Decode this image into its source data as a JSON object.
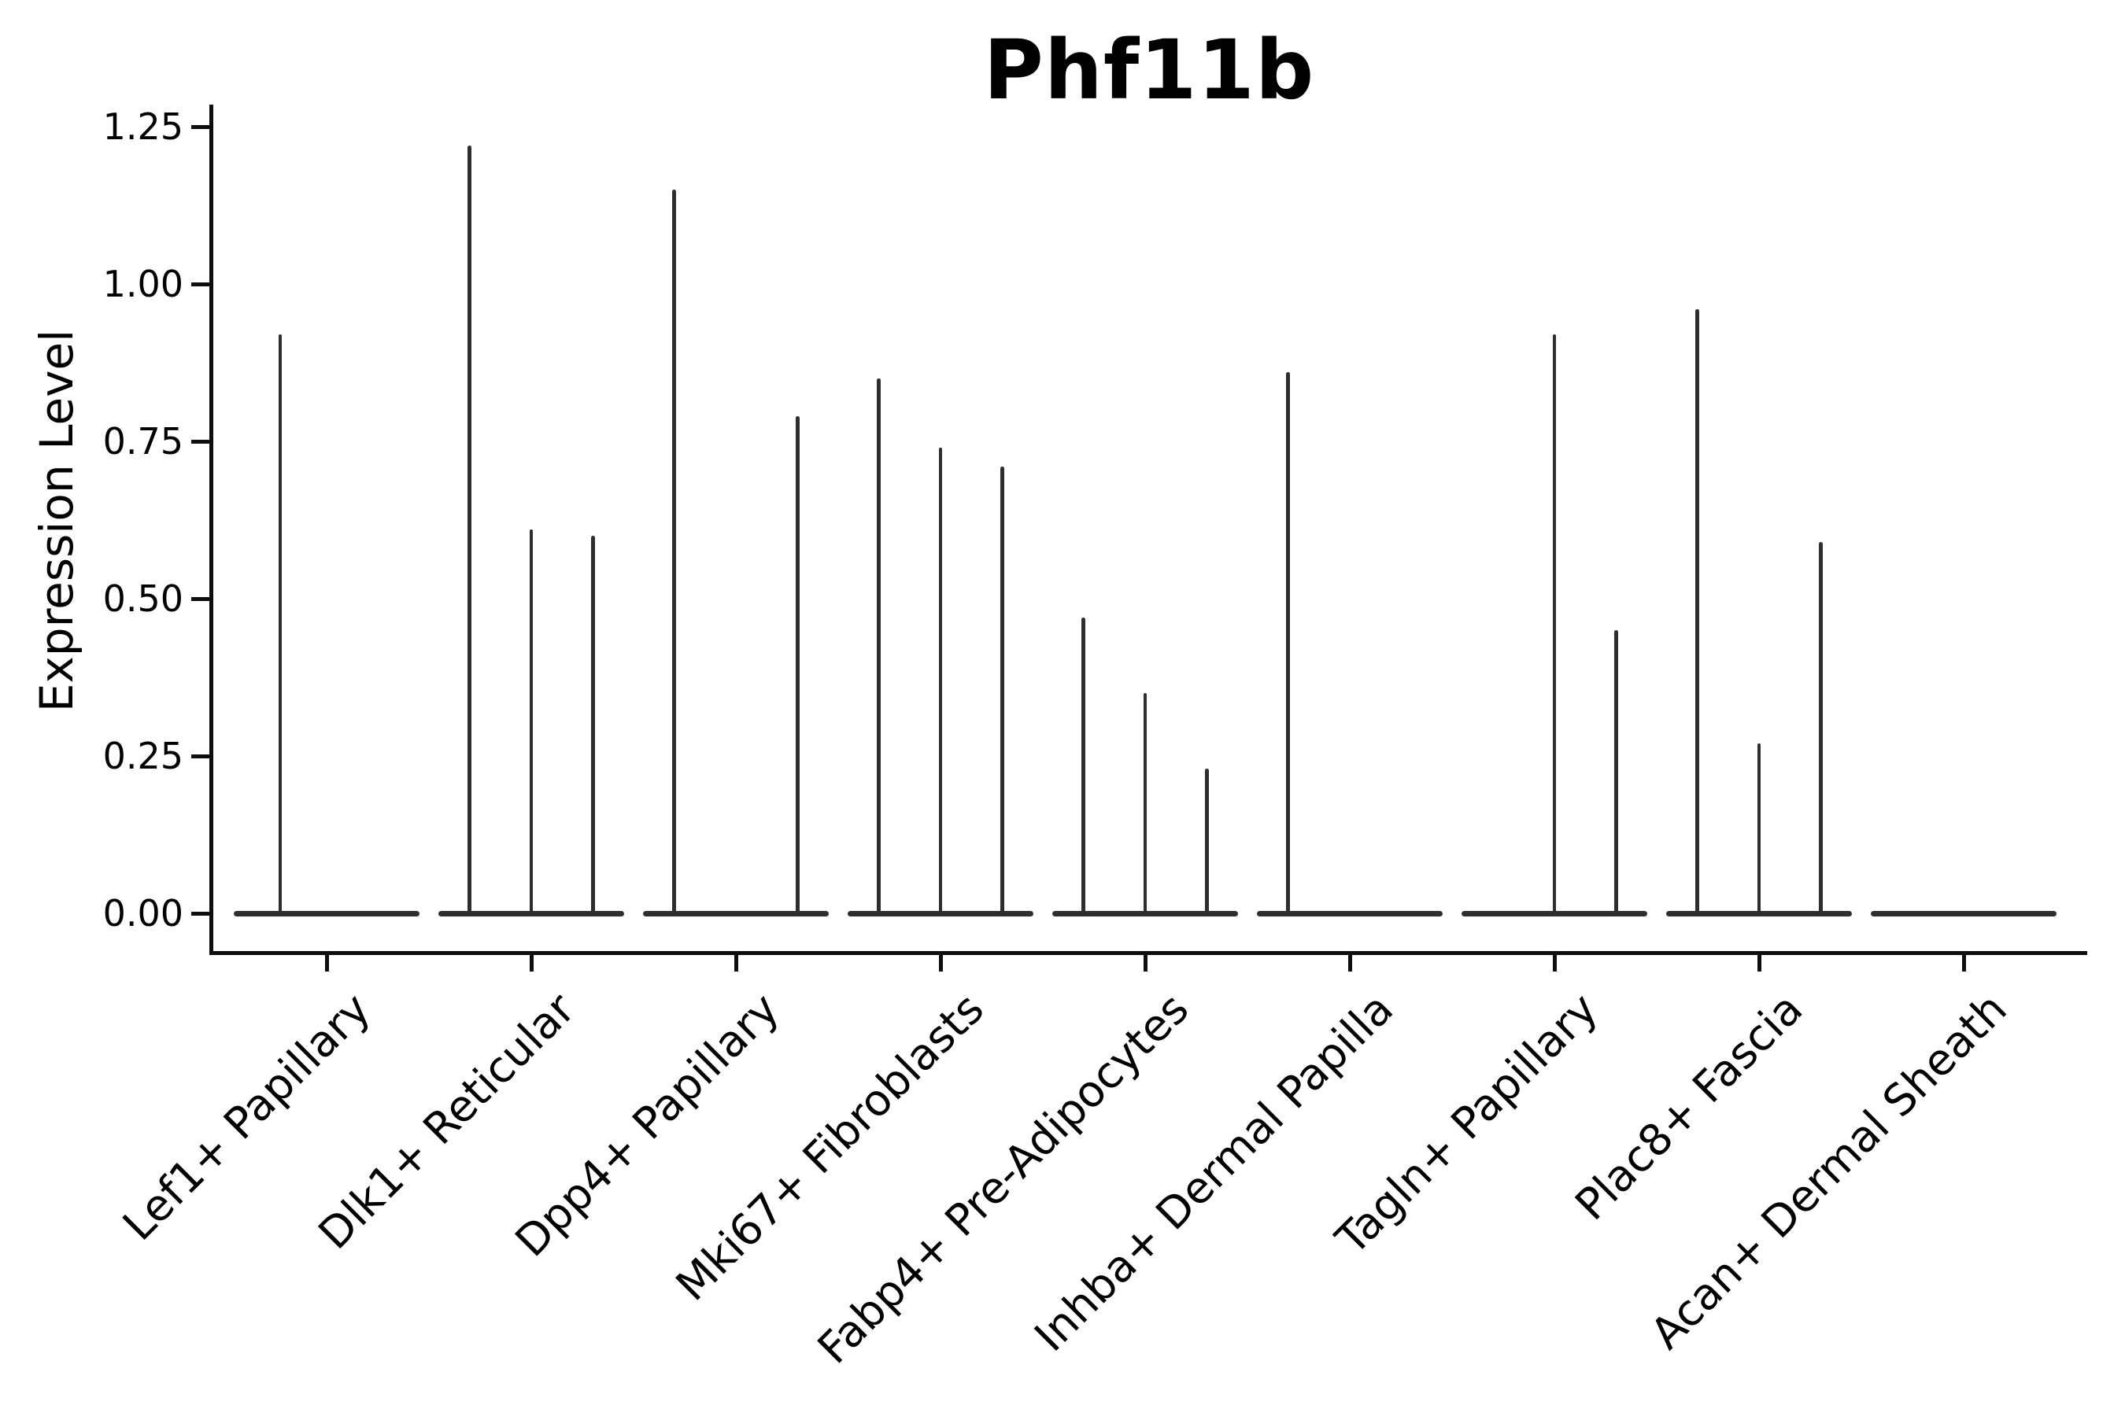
{
  "title": "Phf11b",
  "ylabel": "Expression Level",
  "colors": {
    "violin_line": "#2e2e2e",
    "axis": "#0e0e0e",
    "text": "#000000",
    "background": "#ffffff"
  },
  "chart_data": {
    "type": "violin",
    "title": "Phf11b",
    "xlabel": "",
    "ylabel": "Expression Level",
    "ylim": [
      0,
      1.3
    ],
    "yticks": [
      {
        "value": 0.0,
        "label": "0.00"
      },
      {
        "value": 0.25,
        "label": "0.25"
      },
      {
        "value": 0.5,
        "label": "0.50"
      },
      {
        "value": 0.75,
        "label": "0.75"
      },
      {
        "value": 1.0,
        "label": "1.00"
      },
      {
        "value": 1.25,
        "label": "1.25"
      }
    ],
    "grid": false,
    "legend": "none",
    "style_note": "Thin collapsed violins: bulk of cells at 0 (flat baseline across each category), narrow spikes mark the expression tail maxima; spike pos = fraction across category slot",
    "categories": [
      "Lef1+ Papillary",
      "Dlk1+ Reticular",
      "Dpp4+ Papillary",
      "Mki67+ Fibroblasts",
      "Fabp4+ Pre-Adipocytes",
      "Inhba+ Dermal Papilla",
      "Tagln+ Papillary",
      "Plac8+ Fascia",
      "Acan+ Dermal Sheath"
    ],
    "groups": [
      {
        "category": "Lef1+ Papillary",
        "violins": [
          {
            "pos": 0.25,
            "peak": 0.92
          }
        ]
      },
      {
        "category": "Dlk1+ Reticular",
        "violins": [
          {
            "pos": 0.167,
            "peak": 1.22
          },
          {
            "pos": 0.5,
            "peak": 0.61
          },
          {
            "pos": 0.833,
            "peak": 0.6
          }
        ]
      },
      {
        "category": "Dpp4+ Papillary",
        "violins": [
          {
            "pos": 0.167,
            "peak": 1.15
          },
          {
            "pos": 0.833,
            "peak": 0.79
          }
        ]
      },
      {
        "category": "Mki67+ Fibroblasts",
        "violins": [
          {
            "pos": 0.167,
            "peak": 0.85
          },
          {
            "pos": 0.5,
            "peak": 0.74
          },
          {
            "pos": 0.833,
            "peak": 0.71
          }
        ]
      },
      {
        "category": "Fabp4+ Pre-Adipocytes",
        "violins": [
          {
            "pos": 0.167,
            "peak": 0.47
          },
          {
            "pos": 0.5,
            "peak": 0.35
          },
          {
            "pos": 0.833,
            "peak": 0.23
          }
        ]
      },
      {
        "category": "Inhba+ Dermal Papilla",
        "violins": [
          {
            "pos": 0.167,
            "peak": 0.86
          }
        ]
      },
      {
        "category": "Tagln+ Papillary",
        "violins": [
          {
            "pos": 0.5,
            "peak": 0.92
          },
          {
            "pos": 0.833,
            "peak": 0.45
          }
        ]
      },
      {
        "category": "Plac8+ Fascia",
        "violins": [
          {
            "pos": 0.167,
            "peak": 0.96
          },
          {
            "pos": 0.5,
            "peak": 0.27
          },
          {
            "pos": 0.833,
            "peak": 0.59
          }
        ]
      },
      {
        "category": "Acan+ Dermal Sheath",
        "violins": []
      }
    ]
  }
}
